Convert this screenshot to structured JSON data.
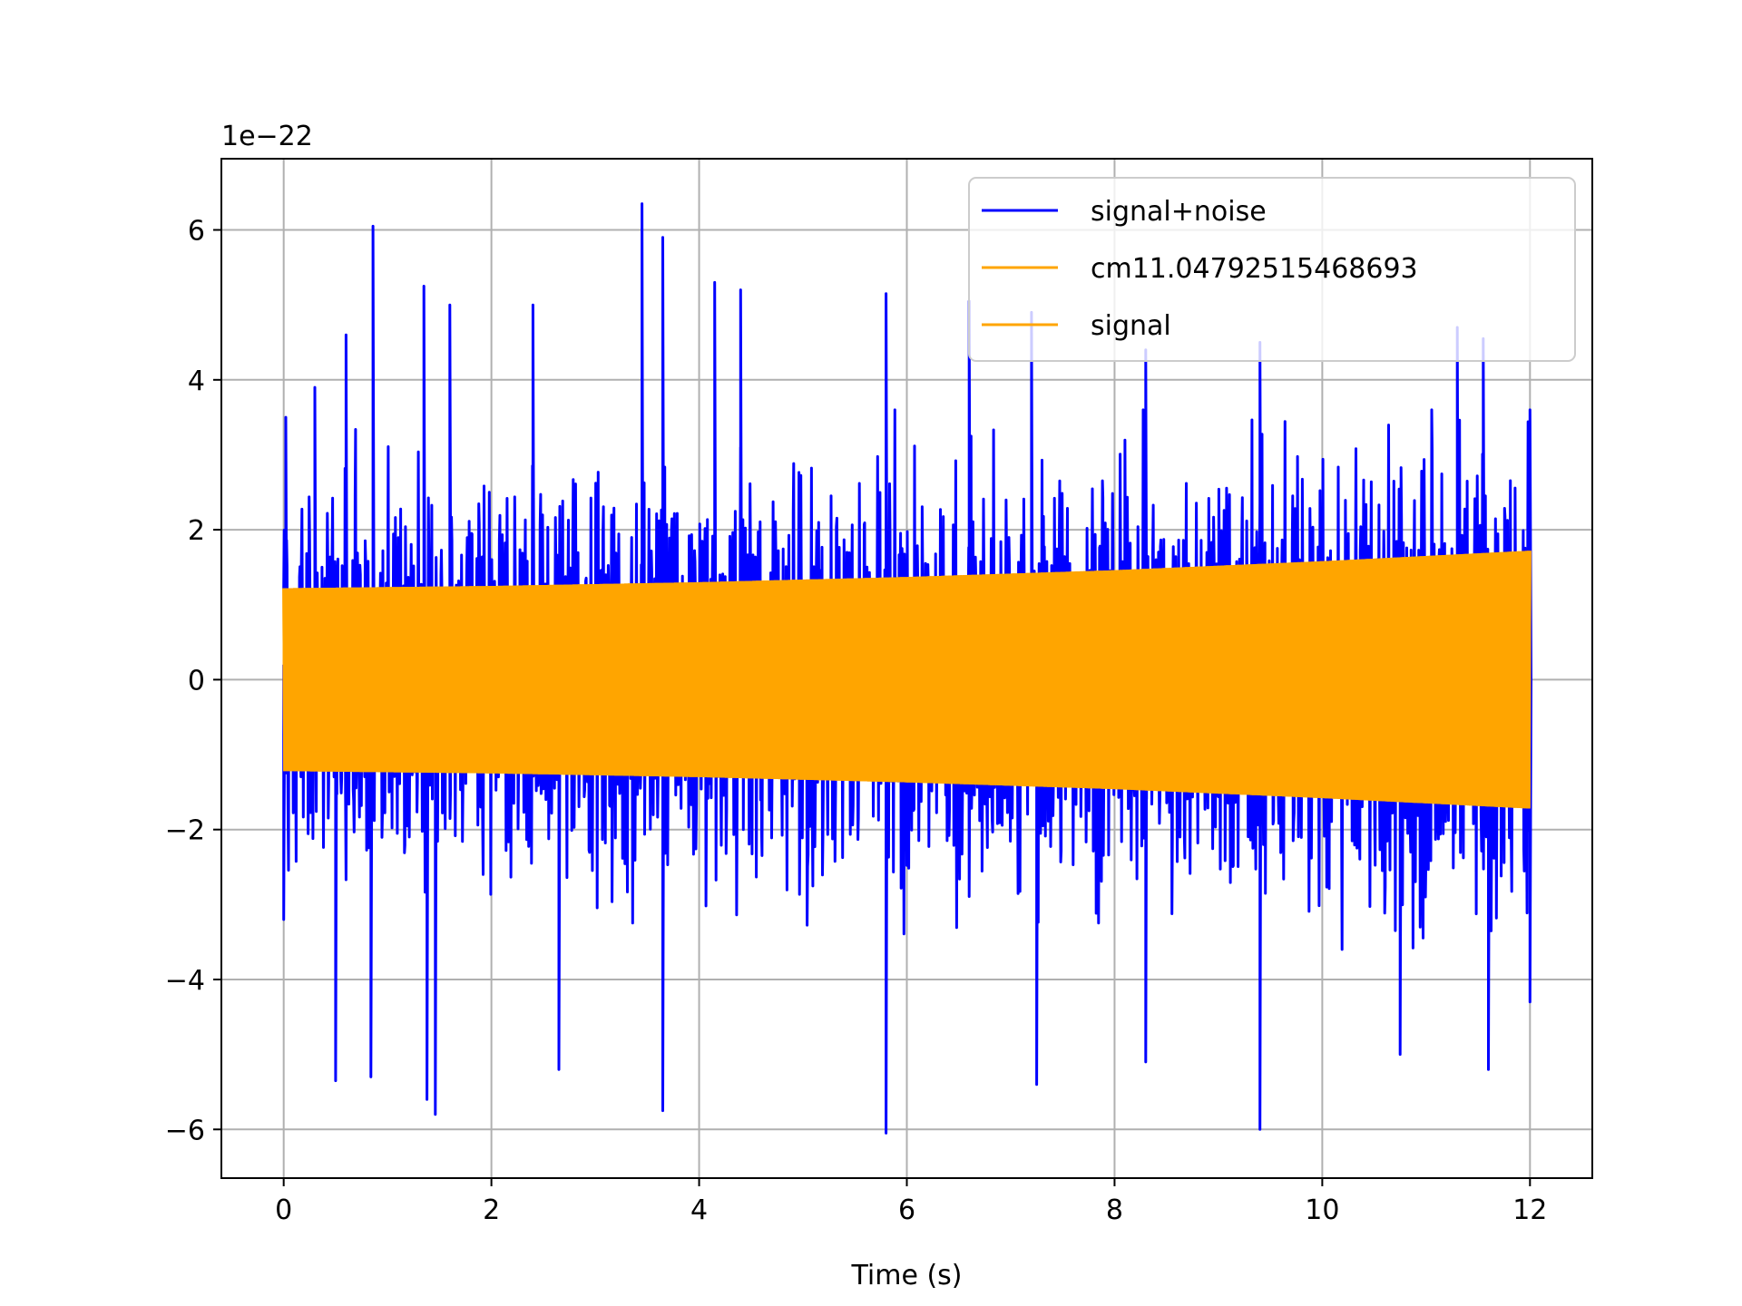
{
  "chart_data": {
    "type": "line",
    "title": "",
    "xlabel": "Time (s)",
    "ylabel": "",
    "y_offset_label": "1e−22",
    "xlim": [
      -0.6,
      12.6
    ],
    "ylim": [
      -6.65,
      6.95
    ],
    "x_ticks": [
      0,
      2,
      4,
      6,
      8,
      10,
      12
    ],
    "x_tick_labels": [
      "0",
      "2",
      "4",
      "6",
      "8",
      "10",
      "12"
    ],
    "y_ticks": [
      -6,
      -4,
      -2,
      0,
      2,
      4,
      6
    ],
    "y_tick_labels": [
      "−6",
      "−4",
      "−2",
      "0",
      "2",
      "4",
      "6"
    ],
    "grid": true,
    "legend_position": "top-right",
    "series": [
      {
        "name": "signal+noise",
        "color": "#0000ff",
        "envelope_peaks": [
          {
            "x": 0.02,
            "y": 3.5
          },
          {
            "x": 0.3,
            "y": 3.9
          },
          {
            "x": 0.6,
            "y": 4.6
          },
          {
            "x": 0.86,
            "y": 6.05
          },
          {
            "x": 1.35,
            "y": 5.25
          },
          {
            "x": 1.6,
            "y": 5.0
          },
          {
            "x": 2.4,
            "y": 5.0
          },
          {
            "x": 3.45,
            "y": 6.35
          },
          {
            "x": 3.65,
            "y": 5.9
          },
          {
            "x": 4.15,
            "y": 5.3
          },
          {
            "x": 4.4,
            "y": 5.2
          },
          {
            "x": 5.8,
            "y": 5.15
          },
          {
            "x": 6.6,
            "y": 5.05
          },
          {
            "x": 7.2,
            "y": 4.9
          },
          {
            "x": 8.3,
            "y": 4.4
          },
          {
            "x": 9.4,
            "y": 4.5
          },
          {
            "x": 11.3,
            "y": 4.7
          },
          {
            "x": 11.55,
            "y": 4.55
          },
          {
            "x": 12.0,
            "y": 3.6
          }
        ],
        "envelope_troughs": [
          {
            "x": 0.0,
            "y": -3.2
          },
          {
            "x": 0.5,
            "y": -5.35
          },
          {
            "x": 0.84,
            "y": -5.3
          },
          {
            "x": 1.38,
            "y": -5.6
          },
          {
            "x": 1.46,
            "y": -5.8
          },
          {
            "x": 2.65,
            "y": -5.2
          },
          {
            "x": 3.65,
            "y": -5.75
          },
          {
            "x": 5.8,
            "y": -6.05
          },
          {
            "x": 7.25,
            "y": -5.4
          },
          {
            "x": 8.3,
            "y": -5.1
          },
          {
            "x": 9.4,
            "y": -6.0
          },
          {
            "x": 10.75,
            "y": -5.0
          },
          {
            "x": 11.6,
            "y": -5.2
          },
          {
            "x": 12.0,
            "y": -4.3
          }
        ]
      },
      {
        "name": "cm11.04792515468693",
        "color": "#ffa500",
        "x": [
          0,
          2,
          4,
          6,
          8,
          10,
          12
        ],
        "amplitude": [
          1.22,
          1.25,
          1.3,
          1.37,
          1.46,
          1.58,
          1.72
        ]
      },
      {
        "name": "signal",
        "color": "#ffa500",
        "x": [
          0,
          2,
          4,
          6,
          8,
          10,
          12
        ],
        "amplitude": [
          1.22,
          1.25,
          1.3,
          1.37,
          1.46,
          1.58,
          1.72
        ]
      }
    ]
  }
}
